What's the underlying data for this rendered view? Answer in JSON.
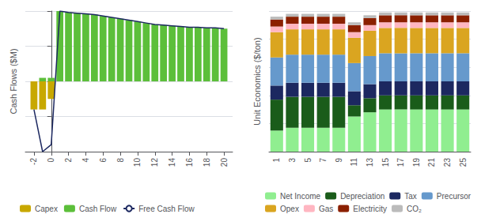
{
  "chart_data": [
    {
      "type": "bar",
      "ylabel": "Cash Flows ($M)",
      "xlim": [
        -3,
        21
      ],
      "xticks": [
        -2,
        0,
        2,
        4,
        6,
        8,
        10,
        12,
        14,
        16,
        18,
        20
      ],
      "ylim": [
        -100,
        100
      ],
      "yticks": [
        -100,
        -50,
        0,
        50,
        100
      ],
      "grid": true,
      "tick_labels": "x",
      "legend": "bottom",
      "series": [
        {
          "name": "Capex",
          "type": "bar",
          "color": "#C8A800",
          "x": [
            -2,
            -1,
            0
          ],
          "values": [
            -40,
            -40,
            -25
          ]
        },
        {
          "name": "Cash Flow",
          "type": "bar",
          "color": "#5CBF3A",
          "x": [
            -1,
            0,
            1,
            2,
            3,
            4,
            5,
            6,
            7,
            8,
            9,
            10,
            11,
            12,
            13,
            14,
            15,
            16,
            17,
            18,
            19,
            20
          ],
          "values": [
            5,
            5,
            100,
            98,
            97,
            96,
            95,
            93,
            91,
            89,
            87,
            85,
            83,
            81,
            80,
            79,
            78,
            77,
            77,
            76,
            76,
            75
          ]
        },
        {
          "name": "Free Cash Flow",
          "type": "line",
          "color": "#1C2860",
          "x": [
            -2,
            -1,
            0,
            1,
            2,
            3,
            4,
            5,
            6,
            7,
            8,
            9,
            10,
            11,
            12,
            13,
            14,
            15,
            16,
            17,
            18,
            19,
            20
          ],
          "values": [
            -40,
            -100,
            -90,
            100,
            98,
            97,
            96,
            95,
            93,
            91,
            89,
            87,
            85,
            83,
            81,
            80,
            79,
            78,
            77,
            77,
            76,
            76,
            75
          ]
        }
      ]
    },
    {
      "type": "bar",
      "ylabel": "Unit Economics ($/ton)",
      "stacked": true,
      "categories": [
        "1",
        "3",
        "5",
        "7",
        "9",
        "11",
        "13",
        "15",
        "17",
        "19",
        "21",
        "23",
        "25"
      ],
      "ylim": [
        0,
        100
      ],
      "yticks": [
        0,
        20,
        40,
        60,
        80,
        100
      ],
      "grid": true,
      "tick_labels": "x",
      "legend": "bottom",
      "series": [
        {
          "name": "Net Income",
          "color": "#90EE90",
          "values": [
            15,
            17,
            17,
            17,
            17,
            25,
            28,
            30,
            30,
            30,
            30,
            30,
            30
          ]
        },
        {
          "name": "Depreciation",
          "color": "#1A5C1A",
          "values": [
            22,
            22,
            22,
            22,
            22,
            8,
            10,
            10,
            10,
            10,
            10,
            10,
            10
          ]
        },
        {
          "name": "Tax",
          "color": "#1C2860",
          "values": [
            10,
            10,
            10,
            10,
            10,
            10,
            10,
            10,
            10,
            10,
            10,
            10,
            10
          ]
        },
        {
          "name": "Precursor",
          "color": "#6699CC",
          "values": [
            20,
            20,
            20,
            20,
            20,
            20,
            20,
            20,
            20,
            20,
            20,
            20,
            20
          ]
        },
        {
          "name": "Opex",
          "color": "#DAA520",
          "values": [
            18,
            18,
            18,
            18,
            18,
            18,
            18,
            18,
            18,
            18,
            18,
            18,
            18
          ]
        },
        {
          "name": "Gas",
          "color": "#FFB6C1",
          "values": [
            4,
            4,
            4,
            4,
            4,
            4,
            4,
            4,
            4,
            4,
            4,
            4,
            4
          ]
        },
        {
          "name": "Electricity",
          "color": "#8B2000",
          "values": [
            5,
            5,
            5,
            5,
            5,
            5,
            5,
            5,
            5,
            5,
            5,
            5,
            5
          ]
        },
        {
          "name": "CO₂",
          "color": "#BBBBBB",
          "values": [
            2,
            2,
            2,
            2,
            2,
            2,
            2,
            2,
            2,
            2,
            2,
            2,
            2
          ]
        }
      ]
    }
  ]
}
